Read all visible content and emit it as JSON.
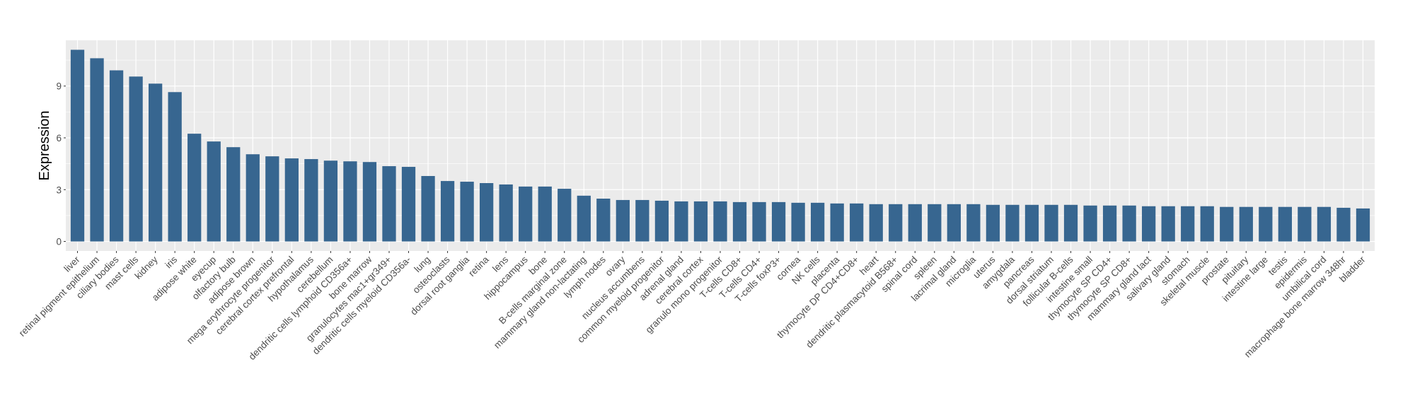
{
  "chart_data": {
    "type": "bar",
    "title": "",
    "xlabel": "",
    "ylabel": "Expression",
    "ylim": [
      -0.55,
      11.65
    ],
    "yticks": [
      0,
      3,
      6,
      9
    ],
    "grid": true,
    "bar_color": "#376690",
    "panel_color": "#ebebeb",
    "categories": [
      "liver",
      "retinal pigment epithelium",
      "ciliary bodies",
      "mast cells",
      "kidney",
      "iris",
      "adipose white",
      "eyecup",
      "olfactory bulb",
      "adipose brown",
      "mega erythrocyte progenitor",
      "cerebral cortex prefrontal",
      "hypothalamus",
      "cerebellum",
      "dendritic cells lymphoid CD356a+",
      "bone marrow",
      "granulocytes mac1+gr349+",
      "dendritic cells myeloid CD356a-",
      "lung",
      "osteoclasts",
      "dorsal root ganglia",
      "retina",
      "lens",
      "hippocampus",
      "bone",
      "B-cells marginal zone",
      "mammary gland non-lactating",
      "lymph nodes",
      "ovary",
      "nucleus accumbens",
      "common myeloid progenitor",
      "adrenal gland",
      "cerebral cortex",
      "granulo mono progenitor",
      "T-cells CD8+",
      "T-cells CD4+",
      "T-cells foxP3+",
      "cornea",
      "NK cells",
      "placenta",
      "thymocyte DP CD4+CD8+",
      "heart",
      "dendritic plasmacytoid B568+",
      "spinal cord",
      "spleen",
      "lacrimal gland",
      "microglia",
      "uterus",
      "amygdala",
      "pancreas",
      "dorsal striatum",
      "follicular B-cells",
      "intestine small",
      "thymocyte SP CD4+",
      "thymocyte SP CD8+",
      "mammary gland  lact",
      "salivary gland",
      "stomach",
      "skeletal muscle",
      "prostate",
      "pituitary",
      "intestine large",
      "testis",
      "epidermis",
      "umbilical cord",
      "macrophage bone marrow 348hr",
      "bladder"
    ],
    "values": [
      11.1,
      10.61,
      9.91,
      9.55,
      9.14,
      8.65,
      6.24,
      5.79,
      5.46,
      5.05,
      4.93,
      4.81,
      4.77,
      4.68,
      4.64,
      4.6,
      4.36,
      4.32,
      3.79,
      3.5,
      3.46,
      3.38,
      3.3,
      3.18,
      3.18,
      3.05,
      2.65,
      2.48,
      2.4,
      2.4,
      2.36,
      2.32,
      2.32,
      2.32,
      2.28,
      2.28,
      2.28,
      2.24,
      2.24,
      2.2,
      2.2,
      2.16,
      2.16,
      2.16,
      2.16,
      2.16,
      2.16,
      2.12,
      2.12,
      2.12,
      2.12,
      2.12,
      2.08,
      2.08,
      2.08,
      2.04,
      2.04,
      2.04,
      2.04,
      2.0,
      2.0,
      2.0,
      2.0,
      2.0,
      2.0,
      1.95,
      1.91
    ]
  }
}
